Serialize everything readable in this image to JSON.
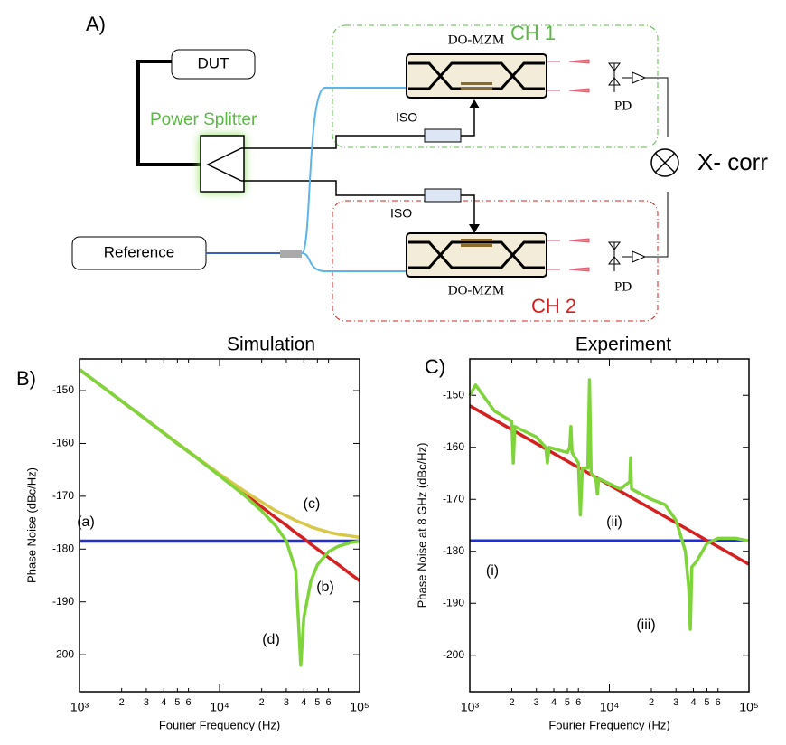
{
  "diagram": {
    "panel_label": "A)",
    "dut": "DUT",
    "splitter": "Power Splitter",
    "reference": "Reference",
    "mzm_top": "DO-MZM",
    "mzm_bottom": "DO-MZM",
    "ch1": "CH 1",
    "ch2": "CH 2",
    "iso_top": "ISO",
    "iso_bottom": "ISO",
    "pd_top": "PD",
    "pd_bottom": "PD",
    "xcorr": "X- corr"
  },
  "chart_data": [
    {
      "type": "line",
      "panel_label": "B)",
      "title": "Simulation",
      "x_label": "Fourier Frequency (Hz)",
      "y_label": "Phase Noise (dBc/Hz)",
      "log_x": true,
      "xlim": [
        1000,
        100000
      ],
      "ylim": [
        -207,
        -144
      ],
      "xticks": [
        {
          "value": 1000,
          "label": "10³"
        },
        {
          "value": 2000,
          "label": "2"
        },
        {
          "value": 3000,
          "label": "3"
        },
        {
          "value": 4000,
          "label": "4"
        },
        {
          "value": 5000,
          "label": "5"
        },
        {
          "value": 6000,
          "label": "6"
        },
        {
          "value": 10000,
          "label": "10⁴"
        },
        {
          "value": 20000,
          "label": "2"
        },
        {
          "value": 30000,
          "label": "3"
        },
        {
          "value": 40000,
          "label": "4"
        },
        {
          "value": 50000,
          "label": "5"
        },
        {
          "value": 60000,
          "label": "6"
        },
        {
          "value": 100000,
          "label": "10⁵"
        }
      ],
      "yticks": [
        -150,
        -160,
        -170,
        -180,
        -190,
        -200
      ],
      "x": [
        1000,
        1500,
        2000,
        3000,
        5000,
        7000,
        10000,
        15000,
        20000,
        25000,
        30000,
        35000,
        38000,
        40000,
        45000,
        50000,
        60000,
        70000,
        85000,
        100000
      ],
      "series": [
        {
          "name": "(a)",
          "color": "#1f2fd6",
          "values": [
            -178.5,
            -178.5,
            -178.5,
            -178.5,
            -178.5,
            -178.5,
            -178.5,
            -178.5,
            -178.5,
            -178.5,
            -178.5,
            -178.5,
            -178.5,
            -178.5,
            -178.5,
            -178.5,
            -178.5,
            -178.5,
            -178.5,
            -178.5
          ]
        },
        {
          "name": "(b)",
          "color": "#d62020",
          "values": [
            -146,
            -149.5,
            -152,
            -155.5,
            -160,
            -162.9,
            -166,
            -169.5,
            -172,
            -174,
            -175.5,
            -176.9,
            -177.6,
            -178,
            -179.1,
            -180,
            -181.6,
            -182.9,
            -184.6,
            -186
          ]
        },
        {
          "name": "(d)",
          "color": "#d8c84a",
          "values": [
            -146,
            -149.5,
            -152,
            -155.5,
            -159.9,
            -162.8,
            -165.8,
            -169,
            -171.1,
            -172.7,
            -173.7,
            -174.6,
            -175,
            -175.2,
            -175.8,
            -176.2,
            -176.8,
            -177.2,
            -177.5,
            -177.8
          ]
        },
        {
          "name": "(c)",
          "color": "#7ed43a",
          "values": [
            -146,
            -149.5,
            -152,
            -155.5,
            -160,
            -162.9,
            -166.1,
            -169.8,
            -172.8,
            -175.5,
            -178.5,
            -184,
            -202,
            -193,
            -186,
            -183,
            -180.5,
            -179.5,
            -178.8,
            -178.5
          ]
        }
      ]
    },
    {
      "type": "line",
      "panel_label": "C)",
      "title": "Experiment",
      "x_label": "Fourier Frequency (Hz)",
      "y_label": "Phase Noise at 8 GHz (dBc/Hz)",
      "log_x": true,
      "xlim": [
        1000,
        100000
      ],
      "ylim": [
        -207,
        -143
      ],
      "xticks": [
        {
          "value": 1000,
          "label": "10³"
        },
        {
          "value": 2000,
          "label": "2"
        },
        {
          "value": 3000,
          "label": "3"
        },
        {
          "value": 4000,
          "label": "4"
        },
        {
          "value": 5000,
          "label": "5"
        },
        {
          "value": 6000,
          "label": "6"
        },
        {
          "value": 10000,
          "label": "10⁴"
        },
        {
          "value": 20000,
          "label": "2"
        },
        {
          "value": 30000,
          "label": "3"
        },
        {
          "value": 40000,
          "label": "4"
        },
        {
          "value": 50000,
          "label": "5"
        },
        {
          "value": 60000,
          "label": "6"
        },
        {
          "value": 100000,
          "label": "10⁵"
        }
      ],
      "yticks": [
        -150,
        -160,
        -170,
        -180,
        -190,
        -200
      ],
      "series": [
        {
          "name": "(i)",
          "color": "#1f2fd6",
          "x": [
            1000,
            100000
          ],
          "values": [
            -178,
            -178
          ]
        },
        {
          "name": "(ii)",
          "color": "#d62020",
          "x": [
            1000,
            100000
          ],
          "values": [
            -152,
            -182.5
          ]
        },
        {
          "name": "(iii)",
          "color": "#7ed43a",
          "x": [
            1000,
            1100,
            1500,
            2000,
            2050,
            2100,
            3000,
            3500,
            3600,
            3700,
            5000,
            5200,
            5300,
            5400,
            6000,
            6200,
            6400,
            7000,
            7200,
            7400,
            8000,
            8200,
            8400,
            10000,
            12000,
            14000,
            14200,
            14400,
            20000,
            25000,
            30000,
            35000,
            37000,
            38000,
            39000,
            42000,
            50000,
            60000,
            80000,
            100000
          ],
          "values": [
            -150,
            -148,
            -153,
            -155,
            -163,
            -156,
            -158,
            -160,
            -163,
            -160,
            -161,
            -160,
            -156,
            -161,
            -163,
            -173,
            -164,
            -164,
            -147,
            -165,
            -166,
            -169,
            -166,
            -167,
            -168,
            -166.6,
            -162,
            -168,
            -170,
            -171,
            -174,
            -180,
            -187,
            -195,
            -183,
            -182,
            -178.5,
            -177.5,
            -177.5,
            -178
          ]
        }
      ]
    }
  ]
}
